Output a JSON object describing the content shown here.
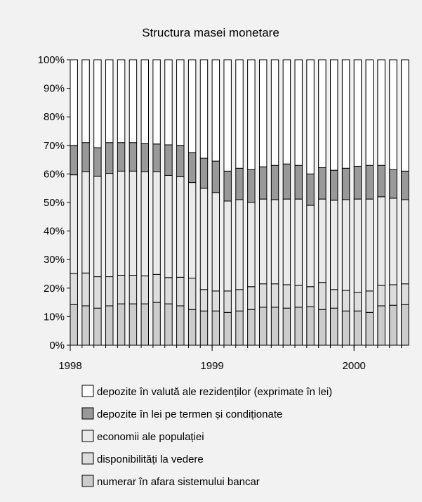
{
  "chart_data": {
    "type": "bar",
    "stacked": true,
    "title": "Structura masei monetare",
    "xlabel": "",
    "ylabel": "",
    "ylim": [
      0,
      100
    ],
    "yticks": [
      "0%",
      "10%",
      "20%",
      "30%",
      "40%",
      "50%",
      "60%",
      "70%",
      "80%",
      "90%",
      "100%"
    ],
    "xtick_labels": [
      {
        "label": "1998",
        "at_bar": 0
      },
      {
        "label": "1999",
        "at_bar": 12
      },
      {
        "label": "2000",
        "at_bar": 24
      }
    ],
    "grid": false,
    "legend_position": "bottom",
    "series": [
      {
        "name": "numerar în afara sistemului bancar",
        "color": "#cccccc",
        "values": [
          14.2,
          13.8,
          13.0,
          13.8,
          14.5,
          14.5,
          14.5,
          15.0,
          14.5,
          13.8,
          12.5,
          12.0,
          12.0,
          11.5,
          12.0,
          12.5,
          13.3,
          13.3,
          13.0,
          13.3,
          13.5,
          12.5,
          13.0,
          12.0,
          12.0,
          11.5,
          13.8,
          14.0,
          14.2
        ]
      },
      {
        "name": "disponibilități la vedere",
        "color": "#dddddd",
        "values": [
          11.0,
          11.5,
          11.0,
          10.2,
          10.0,
          10.0,
          9.8,
          9.8,
          9.2,
          10.0,
          11.0,
          7.5,
          7.0,
          7.5,
          7.5,
          8.0,
          8.2,
          8.2,
          8.2,
          7.7,
          7.0,
          9.5,
          6.5,
          7.2,
          6.5,
          7.5,
          7.2,
          7.2,
          7.3
        ]
      },
      {
        "name": "economii ale populației",
        "color": "#eaeaea",
        "values": [
          34.5,
          35.5,
          35.2,
          36.2,
          36.5,
          36.5,
          36.5,
          36.0,
          35.8,
          35.2,
          33.5,
          35.5,
          34.5,
          31.5,
          31.5,
          29.5,
          29.7,
          29.5,
          30.0,
          30.2,
          28.5,
          29.2,
          31.3,
          31.8,
          32.7,
          32.2,
          31.0,
          30.3,
          29.5
        ]
      },
      {
        "name": "depozite în lei pe termen și condiționate",
        "color": "#999999",
        "values": [
          10.3,
          10.2,
          10.0,
          10.8,
          10.0,
          10.0,
          9.8,
          9.7,
          10.7,
          11.0,
          10.5,
          10.5,
          11.0,
          10.5,
          11.0,
          11.5,
          11.3,
          12.0,
          12.3,
          11.8,
          11.0,
          11.0,
          10.5,
          11.0,
          11.5,
          11.8,
          11.0,
          10.0,
          10.0
        ]
      },
      {
        "name": "depozite în valută ale rezidenților (exprimate în lei)",
        "color": "#ffffff",
        "values": [
          30.0,
          29.0,
          30.8,
          29.0,
          29.0,
          29.0,
          29.4,
          29.5,
          29.8,
          30.0,
          32.5,
          34.5,
          35.5,
          39.0,
          38.0,
          38.5,
          37.5,
          37.0,
          36.5,
          37.0,
          40.0,
          37.8,
          38.7,
          38.0,
          37.3,
          37.0,
          37.0,
          38.5,
          39.0
        ]
      }
    ],
    "legend_order": [
      "depozite în valută ale rezidenților (exprimate în lei)",
      "depozite în lei pe termen și condiționate",
      "economii ale populației",
      "disponibilități la vedere",
      "numerar în afara sistemului bancar"
    ]
  }
}
